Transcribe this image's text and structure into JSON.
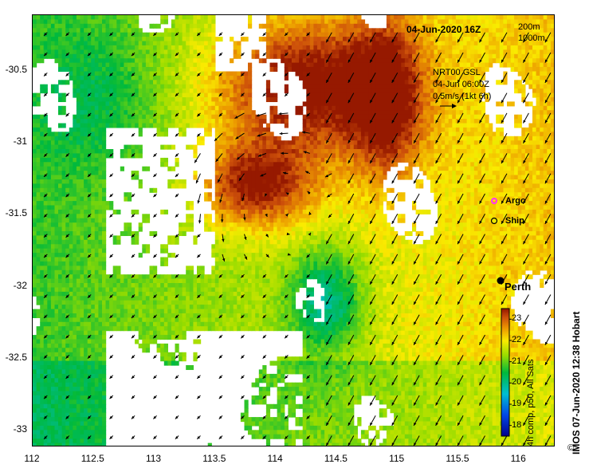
{
  "title": "04-Jun-2020 16Z",
  "isobath_labels": [
    "200m",
    "1000m"
  ],
  "current_legend": [
    "NRT00 GSL",
    "04-Jun 06:00Z",
    "0.5m/s (1kt 6h)"
  ],
  "legend_markers": [
    {
      "label": "Argo",
      "color": "#ff33ff",
      "icon": "argo-marker-icon"
    },
    {
      "label": "Ship",
      "color": "#000000",
      "icon": "ship-marker-icon"
    }
  ],
  "city": {
    "label": "Perth",
    "lon": 115.86,
    "lat": -31.95
  },
  "colorbar": {
    "ticks": [
      "23",
      "22",
      "21",
      "20",
      "19",
      "18"
    ],
    "label": "4h comp, p50, All Sats",
    "min": 17.5,
    "max": 23.5
  },
  "credit": "IMOS 07-Jun-2020 12:38 Hobart",
  "copyright": "©",
  "axes": {
    "x_ticks": [
      "112",
      "112.5",
      "113",
      "113.5",
      "114",
      "114.5",
      "115",
      "115.5",
      "116"
    ],
    "y_ticks": [
      "-30.5",
      "-31",
      "-31.5",
      "-32",
      "-32.5",
      "-33"
    ],
    "xlim": [
      112,
      116.3
    ],
    "ylim": [
      -33.12,
      -30.12
    ]
  },
  "colors": {
    "land": "#fbc89a",
    "coast": "#000000",
    "isobath": "#aaaaaa"
  }
}
